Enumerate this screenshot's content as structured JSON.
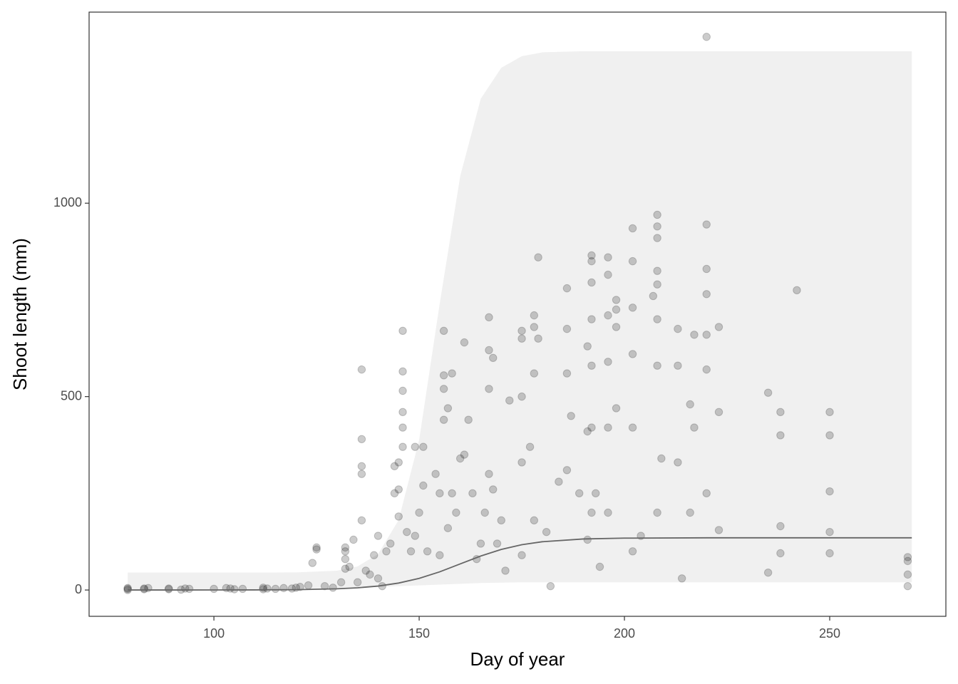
{
  "chart_data": {
    "type": "scatter",
    "x_label": "Day of year",
    "y_label": "Shoot length (mm)",
    "xlim": [
      69.6,
      278.3
    ],
    "ylim": [
      -68,
      1494
    ],
    "xticks": [
      100,
      150,
      200,
      250
    ],
    "yticks": [
      0,
      500,
      1000
    ],
    "color": "#000000",
    "point_alpha": 0.2,
    "x": [
      79,
      79,
      79,
      83,
      83,
      84,
      89,
      89,
      92,
      93,
      94,
      100,
      103,
      104,
      105,
      107,
      112,
      112,
      113,
      115,
      117,
      119,
      120,
      121,
      123,
      124,
      125,
      125,
      127,
      129,
      131,
      132,
      132,
      132,
      132,
      133,
      134,
      135,
      136,
      136,
      136,
      136,
      136,
      137,
      138,
      139,
      140,
      140,
      141,
      142,
      143,
      144,
      144,
      145,
      145,
      145,
      146,
      146,
      146,
      146,
      146,
      146,
      147,
      148,
      149,
      149,
      150,
      151,
      151,
      152,
      154,
      155,
      155,
      156,
      156,
      156,
      156,
      157,
      157,
      158,
      158,
      159,
      160,
      161,
      161,
      162,
      163,
      164,
      165,
      166,
      167,
      167,
      167,
      167,
      168,
      168,
      169,
      170,
      171,
      172,
      175,
      175,
      175,
      175,
      175,
      177,
      178,
      178,
      178,
      178,
      179,
      179,
      181,
      182,
      184,
      186,
      186,
      186,
      186,
      187,
      189,
      191,
      191,
      191,
      192,
      192,
      192,
      192,
      192,
      192,
      192,
      193,
      194,
      196,
      196,
      196,
      196,
      196,
      196,
      198,
      198,
      198,
      198,
      202,
      202,
      202,
      202,
      202,
      202,
      204,
      207,
      208,
      208,
      208,
      208,
      208,
      208,
      208,
      208,
      209,
      213,
      213,
      213,
      214,
      216,
      216,
      217,
      217,
      220,
      220,
      220,
      220,
      220,
      220,
      220,
      223,
      223,
      223,
      235,
      235,
      238,
      238,
      238,
      238,
      242,
      250,
      250,
      250,
      250,
      250,
      269,
      269,
      269,
      269
    ],
    "values": [
      0,
      3,
      5,
      2,
      4,
      5,
      2,
      4,
      1,
      4,
      3,
      3,
      5,
      4,
      2,
      3,
      2,
      6,
      4,
      3,
      5,
      4,
      6,
      8,
      12,
      70,
      105,
      110,
      10,
      6,
      20,
      55,
      80,
      100,
      110,
      60,
      130,
      20,
      570,
      390,
      320,
      300,
      180,
      50,
      40,
      90,
      30,
      140,
      10,
      100,
      120,
      320,
      250,
      190,
      260,
      330,
      670,
      565,
      515,
      460,
      420,
      370,
      150,
      100,
      370,
      140,
      200,
      370,
      270,
      100,
      300,
      250,
      90,
      670,
      555,
      520,
      440,
      470,
      160,
      560,
      250,
      200,
      340,
      640,
      350,
      440,
      250,
      80,
      120,
      200,
      705,
      620,
      520,
      300,
      600,
      260,
      120,
      180,
      50,
      490,
      670,
      650,
      500,
      330,
      90,
      370,
      710,
      680,
      560,
      180,
      860,
      650,
      150,
      10,
      280,
      780,
      675,
      560,
      310,
      450,
      250,
      630,
      410,
      130,
      865,
      850,
      795,
      700,
      580,
      420,
      200,
      250,
      60,
      860,
      815,
      710,
      590,
      420,
      200,
      750,
      725,
      680,
      470,
      935,
      850,
      730,
      610,
      420,
      100,
      140,
      760,
      970,
      940,
      910,
      825,
      790,
      700,
      580,
      200,
      340,
      675,
      580,
      330,
      30,
      480,
      200,
      660,
      420,
      1430,
      945,
      830,
      765,
      660,
      570,
      250,
      680,
      460,
      155,
      510,
      45,
      460,
      400,
      165,
      95,
      775,
      460,
      400,
      255,
      150,
      95,
      85,
      75,
      40,
      10
    ],
    "fit": {
      "x": [
        79,
        90,
        100,
        110,
        120,
        130,
        135,
        140,
        145,
        150,
        155,
        160,
        165,
        170,
        175,
        180,
        190,
        200,
        220,
        250,
        270
      ],
      "values": [
        0,
        0,
        0.1,
        0.3,
        0.9,
        3.1,
        5.7,
        10.2,
        18,
        30.1,
        47,
        67.5,
        87.9,
        104.9,
        117.1,
        124.8,
        132,
        134.1,
        135,
        135,
        135
      ],
      "lower": [
        0,
        0.5,
        1,
        1.5,
        3,
        5,
        6,
        8,
        10,
        12,
        14,
        16,
        18,
        19,
        20,
        20,
        20,
        20,
        20,
        20,
        20
      ],
      "upper": [
        45,
        45,
        45,
        45,
        45.6,
        50,
        61,
        93,
        181,
        388,
        740,
        1070,
        1270,
        1350,
        1380,
        1390,
        1393,
        1393,
        1393,
        1393,
        1393
      ],
      "line_color": "#666666",
      "band_color": "#f0f0f0"
    }
  }
}
